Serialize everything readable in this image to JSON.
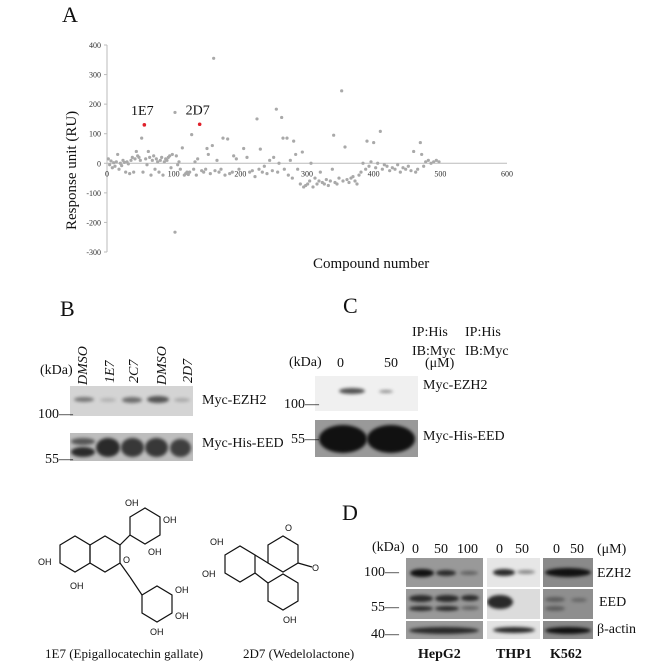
{
  "panels": {
    "a": "A",
    "b": "B",
    "c": "C",
    "d": "D"
  },
  "chart_data": {
    "type": "scatter",
    "xlabel": "Compound number",
    "ylabel": "Response unit (RU)",
    "xlim": [
      0,
      600
    ],
    "ylim": [
      -300,
      400
    ],
    "xticks": [
      "0",
      "100",
      "200",
      "300",
      "400",
      "500",
      "600"
    ],
    "yticks": [
      "400",
      "300",
      "200",
      "100",
      "0",
      "-100",
      "-200",
      "-300"
    ],
    "colors": {
      "points": "#a9a9a9",
      "highlight": "#e0202a"
    },
    "highlights": [
      {
        "label": "1E7",
        "x": 56,
        "y": 130
      },
      {
        "label": "2D7",
        "x": 139,
        "y": 132
      }
    ],
    "points": [
      [
        2,
        15
      ],
      [
        4,
        -5
      ],
      [
        6,
        8
      ],
      [
        8,
        -15
      ],
      [
        10,
        2
      ],
      [
        12,
        -10
      ],
      [
        14,
        5
      ],
      [
        16,
        30
      ],
      [
        18,
        -20
      ],
      [
        20,
        0
      ],
      [
        22,
        -8
      ],
      [
        24,
        10
      ],
      [
        26,
        3
      ],
      [
        28,
        -30
      ],
      [
        30,
        5
      ],
      [
        32,
        -2
      ],
      [
        34,
        -35
      ],
      [
        36,
        10
      ],
      [
        38,
        20
      ],
      [
        40,
        -30
      ],
      [
        42,
        15
      ],
      [
        44,
        40
      ],
      [
        46,
        25
      ],
      [
        48,
        20
      ],
      [
        50,
        10
      ],
      [
        52,
        85
      ],
      [
        54,
        -30
      ],
      [
        58,
        15
      ],
      [
        60,
        -5
      ],
      [
        62,
        40
      ],
      [
        64,
        20
      ],
      [
        66,
        -40
      ],
      [
        68,
        10
      ],
      [
        70,
        25
      ],
      [
        72,
        -20
      ],
      [
        74,
        15
      ],
      [
        76,
        5
      ],
      [
        78,
        -30
      ],
      [
        80,
        10
      ],
      [
        82,
        20
      ],
      [
        84,
        -40
      ],
      [
        86,
        5
      ],
      [
        88,
        15
      ],
      [
        90,
        10
      ],
      [
        92,
        20
      ],
      [
        94,
        25
      ],
      [
        96,
        -15
      ],
      [
        98,
        30
      ],
      [
        102,
        172
      ],
      [
        102,
        -233
      ],
      [
        104,
        25
      ],
      [
        106,
        -5
      ],
      [
        108,
        5
      ],
      [
        110,
        -20
      ],
      [
        113,
        52
      ],
      [
        116,
        -40
      ],
      [
        118,
        -35
      ],
      [
        120,
        -30
      ],
      [
        122,
        -38
      ],
      [
        124,
        -30
      ],
      [
        127,
        97
      ],
      [
        130,
        -20
      ],
      [
        132,
        5
      ],
      [
        134,
        -40
      ],
      [
        136,
        15
      ],
      [
        142,
        -25
      ],
      [
        145,
        -30
      ],
      [
        148,
        -20
      ],
      [
        150,
        50
      ],
      [
        152,
        30
      ],
      [
        155,
        -35
      ],
      [
        158,
        60
      ],
      [
        160,
        355
      ],
      [
        162,
        -25
      ],
      [
        165,
        10
      ],
      [
        168,
        -30
      ],
      [
        171,
        -20
      ],
      [
        174,
        85
      ],
      [
        177,
        -40
      ],
      [
        181,
        82
      ],
      [
        184,
        -35
      ],
      [
        188,
        -30
      ],
      [
        190,
        25
      ],
      [
        194,
        15
      ],
      [
        198,
        -20
      ],
      [
        205,
        50
      ],
      [
        210,
        20
      ],
      [
        214,
        -30
      ],
      [
        218,
        -25
      ],
      [
        222,
        -45
      ],
      [
        225,
        150
      ],
      [
        228,
        -20
      ],
      [
        230,
        48
      ],
      [
        233,
        -30
      ],
      [
        236,
        -10
      ],
      [
        240,
        -35
      ],
      [
        244,
        10
      ],
      [
        248,
        -25
      ],
      [
        250,
        20
      ],
      [
        254,
        183
      ],
      [
        256,
        -30
      ],
      [
        258,
        0
      ],
      [
        262,
        155
      ],
      [
        264,
        85
      ],
      [
        266,
        -20
      ],
      [
        270,
        85
      ],
      [
        272,
        -40
      ],
      [
        275,
        10
      ],
      [
        278,
        -50
      ],
      [
        280,
        75
      ],
      [
        283,
        30
      ],
      [
        286,
        -20
      ],
      [
        290,
        -70
      ],
      [
        293,
        38
      ],
      [
        295,
        -80
      ],
      [
        298,
        -75
      ],
      [
        301,
        -70
      ],
      [
        304,
        -60
      ],
      [
        306,
        0
      ],
      [
        309,
        -80
      ],
      [
        312,
        -50
      ],
      [
        315,
        -70
      ],
      [
        318,
        -60
      ],
      [
        320,
        -30
      ],
      [
        323,
        -65
      ],
      [
        326,
        -70
      ],
      [
        329,
        -55
      ],
      [
        332,
        -75
      ],
      [
        335,
        -60
      ],
      [
        338,
        -20
      ],
      [
        340,
        95
      ],
      [
        342,
        -65
      ],
      [
        345,
        -70
      ],
      [
        348,
        -50
      ],
      [
        352,
        245
      ],
      [
        354,
        -60
      ],
      [
        357,
        55
      ],
      [
        360,
        -55
      ],
      [
        363,
        -65
      ],
      [
        366,
        -50
      ],
      [
        369,
        -45
      ],
      [
        372,
        -60
      ],
      [
        375,
        -70
      ],
      [
        378,
        -40
      ],
      [
        381,
        -30
      ],
      [
        384,
        0
      ],
      [
        388,
        -20
      ],
      [
        390,
        75
      ],
      [
        393,
        -10
      ],
      [
        396,
        5
      ],
      [
        400,
        70
      ],
      [
        403,
        -15
      ],
      [
        406,
        0
      ],
      [
        410,
        108
      ],
      [
        413,
        -20
      ],
      [
        416,
        -5
      ],
      [
        420,
        -10
      ],
      [
        424,
        -25
      ],
      [
        428,
        -15
      ],
      [
        432,
        -20
      ],
      [
        436,
        -5
      ],
      [
        440,
        -30
      ],
      [
        444,
        -15
      ],
      [
        448,
        -20
      ],
      [
        452,
        -10
      ],
      [
        456,
        -25
      ],
      [
        460,
        40
      ],
      [
        463,
        -30
      ],
      [
        466,
        -20
      ],
      [
        470,
        70
      ],
      [
        472,
        30
      ],
      [
        475,
        -10
      ],
      [
        478,
        5
      ],
      [
        482,
        10
      ],
      [
        486,
        0
      ],
      [
        490,
        5
      ],
      [
        494,
        10
      ],
      [
        498,
        5
      ]
    ]
  },
  "panel_b": {
    "lanes": [
      "DMSO",
      "1E7",
      "2C7",
      "DMSO",
      "2D7"
    ],
    "kda": "(kDa)",
    "m100": "100—",
    "m55": "55—",
    "ip": "IP:His",
    "ib": "IB:Myc",
    "row1": "Myc-EZH2",
    "row2": "Myc-His-EED"
  },
  "panel_c": {
    "kda": "(kDa)",
    "doses": [
      "0",
      "50"
    ],
    "unit": "(μM)",
    "m100": "100—",
    "m55": "55—",
    "ip": "IP:His",
    "ib": "IB:Myc",
    "row1": "Myc-EZH2",
    "row2": "Myc-His-EED"
  },
  "panel_d": {
    "kda": "(kDa)",
    "unit": "(μM)",
    "doses_hepg2": [
      "0",
      "50",
      "100"
    ],
    "doses_thp1": [
      "0",
      "50"
    ],
    "doses_k562": [
      "0",
      "50"
    ],
    "m100": "100—",
    "m55": "55—",
    "m40": "40—",
    "rows": [
      "EZH2",
      "EED",
      "β-actin"
    ],
    "cells": [
      "HepG2",
      "THP1",
      "K562"
    ]
  },
  "structures": {
    "s1": "1E7 (Epigallocatechin gallate)",
    "s2": "2D7 (Wedelolactone)",
    "oh": "OH",
    "o": "O"
  }
}
